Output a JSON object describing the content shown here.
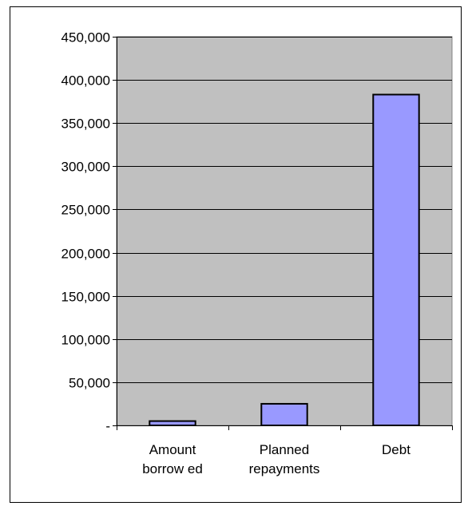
{
  "chart_data": {
    "type": "bar",
    "categories": [
      [
        "Amount",
        "borrow ed"
      ],
      [
        "Planned",
        "repayments"
      ],
      [
        "Debt"
      ]
    ],
    "values": [
      5000,
      25000,
      383000
    ],
    "ylim": [
      0,
      450000
    ],
    "yticks": [
      "-",
      "50,000",
      "100,000",
      "150,000",
      "200,000",
      "250,000",
      "300,000",
      "350,000",
      "400,000",
      "450,000"
    ],
    "ytick_values": [
      0,
      50000,
      100000,
      150000,
      200000,
      250000,
      300000,
      350000,
      400000,
      450000
    ],
    "grid": true,
    "legend": "none",
    "colors": {
      "plot_background": "#c0c0c0",
      "bar_fill": "#9999ff",
      "bar_stroke": "#000000",
      "gridline": "#000000"
    }
  }
}
